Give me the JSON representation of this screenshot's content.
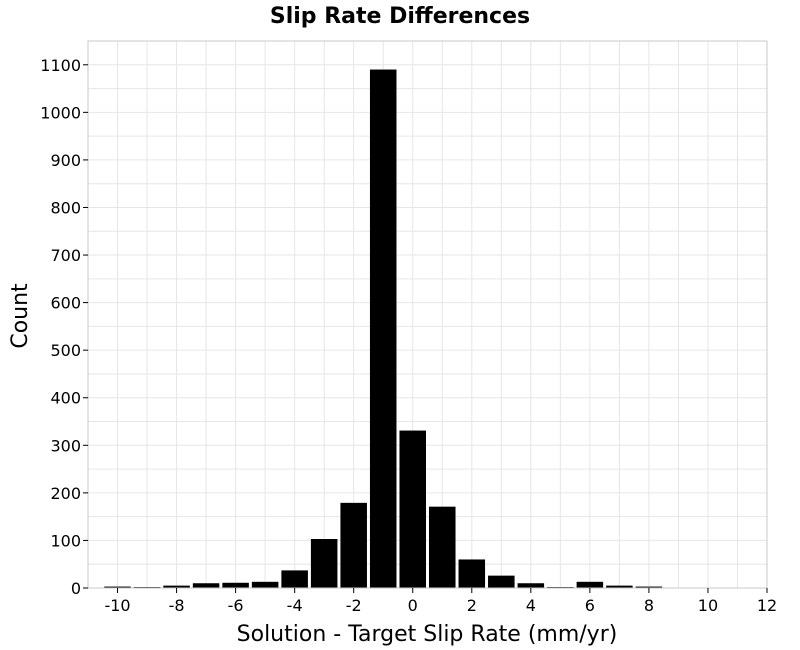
{
  "chart_data": {
    "type": "bar",
    "title": "Slip Rate Differences",
    "xlabel": "Solution - Target Slip Rate (mm/yr)",
    "ylabel": "Count",
    "xlim": [
      -11,
      12
    ],
    "ylim": [
      0,
      1150
    ],
    "xticks": [
      "-10",
      "-8",
      "-6",
      "-4",
      "-2",
      "0",
      "2",
      "4",
      "6",
      "8",
      "10",
      "12"
    ],
    "yticks": [
      "0",
      "100",
      "200",
      "300",
      "400",
      "500",
      "600",
      "700",
      "800",
      "900",
      "1000",
      "1100"
    ],
    "bar_width": 1,
    "x": [
      -10,
      -9,
      -8,
      -7,
      -6,
      -5,
      -4,
      -3,
      -2,
      -1,
      0,
      1,
      2,
      3,
      4,
      5,
      6,
      7,
      8,
      9,
      10,
      11
    ],
    "values": [
      3,
      2,
      5,
      10,
      11,
      13,
      37,
      103,
      179,
      1090,
      331,
      171,
      60,
      26,
      10,
      2,
      13,
      5,
      3,
      0,
      0,
      0
    ],
    "grid": true,
    "bar_color": "#000000",
    "grid_color": "#e6e6e6"
  }
}
